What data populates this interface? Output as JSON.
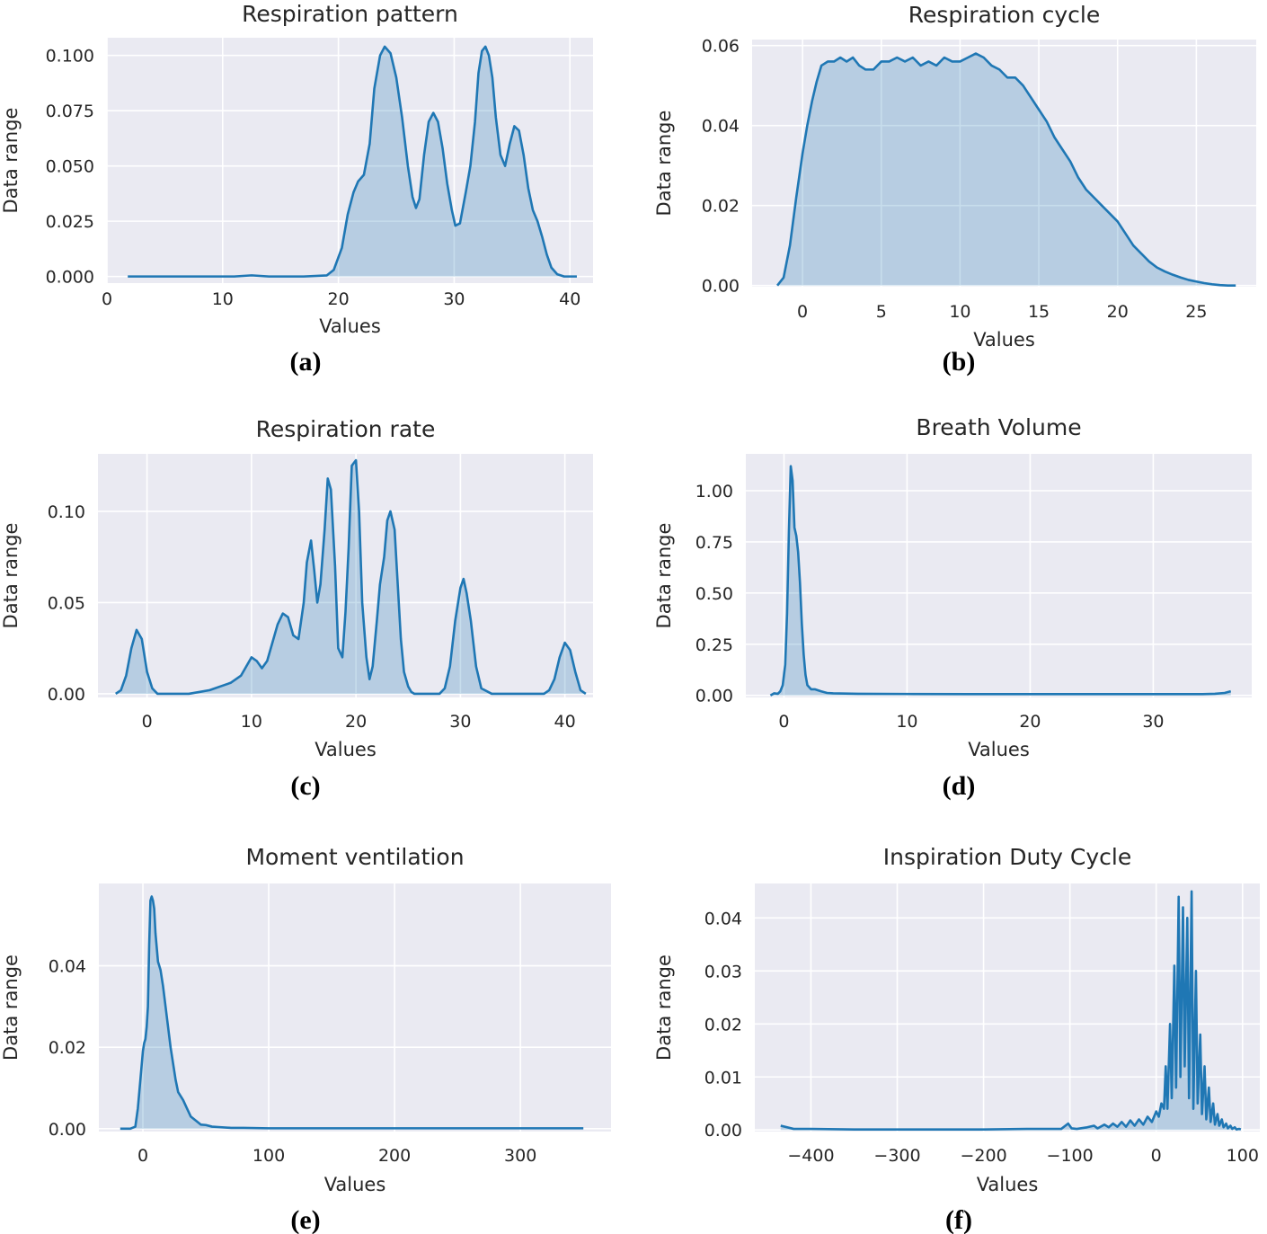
{
  "style": {
    "panel_bg": "#eaeaf2",
    "grid": "#ffffff",
    "line": "#1f77b4",
    "fill": "#1f77b4",
    "fill_opacity": 0.25
  },
  "chart_data": [
    {
      "type": "area",
      "caption": "(a)",
      "title": "Respiration pattern",
      "xlabel": "Values",
      "ylabel": "Data range",
      "xlim": [
        0,
        42
      ],
      "ylim": [
        -0.003,
        0.108
      ],
      "xticks": [
        0,
        10,
        20,
        30,
        40
      ],
      "yticks": [
        0.0,
        0.025,
        0.05,
        0.075,
        0.1
      ],
      "xticklabels": [
        "0",
        "10",
        "20",
        "30",
        "40"
      ],
      "yticklabels": [
        "0.000",
        "0.025",
        "0.050",
        "0.075",
        "0.100"
      ],
      "grid": true,
      "x": [
        1.8,
        5,
        9,
        11,
        12.5,
        14,
        17,
        19,
        19.6,
        20.3,
        20.8,
        21.3,
        21.7,
        22.2,
        22.7,
        23.1,
        23.6,
        24.0,
        24.5,
        25.0,
        25.5,
        26.0,
        26.4,
        26.7,
        27.0,
        27.4,
        27.8,
        28.2,
        28.6,
        29.0,
        29.4,
        29.8,
        30.1,
        30.5,
        31.0,
        31.4,
        31.8,
        32.1,
        32.4,
        32.7,
        33.0,
        33.3,
        33.6,
        34.0,
        34.4,
        34.8,
        35.2,
        35.6,
        36.0,
        36.4,
        36.8,
        37.2,
        37.6,
        38.0,
        38.4,
        38.9,
        39.5,
        40.0,
        40.6
      ],
      "y": [
        0.0,
        0.0,
        0.0,
        0.0,
        0.0005,
        0.0,
        0.0,
        0.0005,
        0.003,
        0.013,
        0.028,
        0.038,
        0.043,
        0.046,
        0.06,
        0.085,
        0.1,
        0.104,
        0.101,
        0.09,
        0.072,
        0.05,
        0.036,
        0.031,
        0.035,
        0.055,
        0.07,
        0.074,
        0.07,
        0.058,
        0.042,
        0.03,
        0.023,
        0.024,
        0.038,
        0.05,
        0.07,
        0.092,
        0.102,
        0.104,
        0.1,
        0.09,
        0.072,
        0.055,
        0.05,
        0.06,
        0.068,
        0.066,
        0.055,
        0.04,
        0.03,
        0.025,
        0.018,
        0.01,
        0.004,
        0.001,
        0.0,
        0.0,
        0.0
      ]
    },
    {
      "type": "area",
      "caption": "(b)",
      "title": "Respiration cycle",
      "xlabel": "Values",
      "ylabel": "Data range",
      "xlim": [
        -3.2,
        28.8
      ],
      "ylim": [
        -0.0003,
        0.0615
      ],
      "xticks": [
        0,
        5,
        10,
        15,
        20,
        25
      ],
      "yticks": [
        0.0,
        0.02,
        0.04,
        0.06
      ],
      "xticklabels": [
        "0",
        "5",
        "10",
        "15",
        "20",
        "25"
      ],
      "yticklabels": [
        "0.00",
        "0.02",
        "0.04",
        "0.06"
      ],
      "grid": true,
      "x": [
        -1.6,
        -1.2,
        -0.8,
        -0.4,
        0.0,
        0.3,
        0.6,
        0.9,
        1.2,
        1.6,
        2.0,
        2.4,
        2.8,
        3.2,
        3.6,
        4.0,
        4.5,
        5.0,
        5.5,
        6.0,
        6.5,
        7.0,
        7.5,
        8.0,
        8.5,
        9.0,
        9.5,
        10.0,
        10.5,
        11.0,
        11.5,
        12.0,
        12.5,
        13.0,
        13.5,
        14.0,
        14.5,
        15.0,
        15.5,
        16.0,
        16.5,
        17.0,
        17.5,
        18.0,
        18.5,
        19.0,
        19.5,
        20.0,
        20.5,
        21.0,
        21.5,
        22.0,
        22.5,
        23.0,
        23.5,
        24.0,
        24.5,
        25.0,
        25.5,
        26.0,
        26.5,
        27.0,
        27.5
      ],
      "y": [
        0.0,
        0.002,
        0.01,
        0.022,
        0.033,
        0.04,
        0.046,
        0.051,
        0.055,
        0.056,
        0.056,
        0.057,
        0.056,
        0.057,
        0.055,
        0.054,
        0.054,
        0.056,
        0.056,
        0.057,
        0.056,
        0.057,
        0.055,
        0.056,
        0.055,
        0.057,
        0.056,
        0.056,
        0.057,
        0.058,
        0.057,
        0.055,
        0.054,
        0.052,
        0.052,
        0.05,
        0.047,
        0.044,
        0.041,
        0.037,
        0.034,
        0.031,
        0.027,
        0.024,
        0.022,
        0.02,
        0.018,
        0.016,
        0.013,
        0.01,
        0.008,
        0.006,
        0.0045,
        0.0035,
        0.0027,
        0.002,
        0.0014,
        0.001,
        0.0006,
        0.0003,
        0.0001,
        0.0,
        0.0
      ]
    },
    {
      "type": "area",
      "caption": "(c)",
      "title": "Respiration rate",
      "xlabel": "Values",
      "ylabel": "Data range",
      "xlim": [
        -4.7,
        42.7
      ],
      "ylim": [
        -0.002,
        0.1315
      ],
      "xticks": [
        0,
        10,
        20,
        30,
        40
      ],
      "yticks": [
        0.0,
        0.05,
        0.1
      ],
      "xticklabels": [
        "0",
        "10",
        "20",
        "30",
        "40"
      ],
      "yticklabels": [
        "0.00",
        "0.05",
        "0.10"
      ],
      "grid": true,
      "x": [
        -3.0,
        -2.5,
        -2.0,
        -1.5,
        -1.0,
        -0.5,
        0.0,
        0.5,
        1.0,
        2.0,
        3.0,
        4.0,
        5.0,
        6.0,
        7.0,
        8.0,
        9.0,
        9.5,
        10.0,
        10.5,
        11.0,
        11.5,
        12.0,
        12.5,
        13.0,
        13.5,
        14.0,
        14.5,
        15.0,
        15.3,
        15.7,
        16.0,
        16.3,
        16.6,
        17.0,
        17.3,
        17.6,
        18.0,
        18.3,
        18.7,
        19.0,
        19.3,
        19.6,
        20.0,
        20.3,
        20.6,
        21.0,
        21.3,
        21.6,
        22.0,
        22.3,
        22.7,
        23.0,
        23.3,
        23.7,
        24.0,
        24.3,
        24.6,
        25.0,
        25.3,
        25.6,
        26.0,
        27.0,
        28.0,
        28.5,
        29.0,
        29.5,
        30.0,
        30.3,
        30.6,
        31.0,
        31.5,
        32.0,
        33.0,
        35.0,
        37.0,
        38.0,
        38.5,
        39.0,
        39.5,
        40.0,
        40.5,
        41.0,
        41.5,
        42.0
      ],
      "y": [
        0.0,
        0.002,
        0.01,
        0.025,
        0.035,
        0.03,
        0.012,
        0.003,
        0.0,
        0.0,
        0.0,
        0.0,
        0.001,
        0.002,
        0.004,
        0.006,
        0.01,
        0.015,
        0.02,
        0.018,
        0.014,
        0.018,
        0.028,
        0.038,
        0.044,
        0.042,
        0.032,
        0.03,
        0.05,
        0.072,
        0.084,
        0.068,
        0.05,
        0.06,
        0.09,
        0.118,
        0.112,
        0.07,
        0.025,
        0.02,
        0.045,
        0.08,
        0.125,
        0.128,
        0.1,
        0.05,
        0.02,
        0.008,
        0.015,
        0.04,
        0.06,
        0.075,
        0.095,
        0.1,
        0.09,
        0.06,
        0.03,
        0.012,
        0.004,
        0.001,
        0.0,
        0.0,
        0.0,
        0.0,
        0.003,
        0.015,
        0.04,
        0.058,
        0.063,
        0.055,
        0.04,
        0.015,
        0.003,
        0.0,
        0.0,
        0.0,
        0.0,
        0.002,
        0.008,
        0.02,
        0.028,
        0.024,
        0.012,
        0.002,
        0.0
      ]
    },
    {
      "type": "area",
      "caption": "(d)",
      "title": "Breath Volume",
      "xlabel": "Values",
      "ylabel": "Data range",
      "xlim": [
        -3.1,
        38.0
      ],
      "ylim": [
        -0.01,
        1.18
      ],
      "xticks": [
        0,
        10,
        20,
        30
      ],
      "yticks": [
        0.0,
        0.25,
        0.5,
        0.75,
        1.0
      ],
      "xticklabels": [
        "0",
        "10",
        "20",
        "30"
      ],
      "yticklabels": [
        "0.00",
        "0.25",
        "0.50",
        "0.75",
        "1.00"
      ],
      "grid": true,
      "x": [
        -1.1,
        -0.8,
        -0.5,
        -0.3,
        -0.1,
        0.1,
        0.25,
        0.4,
        0.55,
        0.7,
        0.85,
        1.0,
        1.15,
        1.3,
        1.45,
        1.6,
        1.75,
        1.9,
        2.05,
        2.2,
        2.5,
        3.0,
        3.5,
        4.0,
        6.0,
        10.0,
        15.0,
        20.0,
        25.0,
        30.0,
        34.0,
        35.0,
        35.8,
        36.3
      ],
      "y": [
        0.0,
        0.01,
        0.008,
        0.02,
        0.05,
        0.15,
        0.4,
        0.8,
        1.12,
        1.05,
        0.82,
        0.78,
        0.7,
        0.55,
        0.35,
        0.2,
        0.1,
        0.05,
        0.04,
        0.03,
        0.03,
        0.02,
        0.012,
        0.01,
        0.008,
        0.007,
        0.006,
        0.006,
        0.006,
        0.006,
        0.006,
        0.008,
        0.012,
        0.02
      ]
    },
    {
      "type": "area",
      "caption": "(e)",
      "title": "Moment ventilation",
      "xlabel": "Values",
      "ylabel": "Data range",
      "xlim": [
        -35,
        372
      ],
      "ylim": [
        -0.0007,
        0.0602
      ],
      "xticks": [
        0,
        100,
        200,
        300
      ],
      "yticks": [
        0.0,
        0.02,
        0.04
      ],
      "xticklabels": [
        "0",
        "100",
        "200",
        "300"
      ],
      "yticklabels": [
        "0.00",
        "0.02",
        "0.04"
      ],
      "grid": true,
      "x": [
        -18,
        -10,
        -6,
        -4,
        -2,
        0,
        1,
        2,
        3,
        4,
        5,
        6,
        7,
        8,
        9,
        10,
        12,
        14,
        16,
        18,
        20,
        22,
        24,
        26,
        28,
        30,
        32,
        35,
        38,
        42,
        46,
        50,
        55,
        60,
        70,
        80,
        100,
        150,
        200,
        250,
        300,
        350
      ],
      "y": [
        0.0,
        0.0,
        0.0005,
        0.005,
        0.012,
        0.019,
        0.021,
        0.022,
        0.025,
        0.03,
        0.045,
        0.056,
        0.057,
        0.056,
        0.054,
        0.048,
        0.041,
        0.039,
        0.035,
        0.03,
        0.025,
        0.02,
        0.016,
        0.012,
        0.009,
        0.008,
        0.007,
        0.005,
        0.003,
        0.002,
        0.001,
        0.0009,
        0.0005,
        0.0004,
        0.0002,
        0.0002,
        0.0001,
        0.0001,
        0.0001,
        0.0001,
        0.0001,
        0.0001
      ]
    },
    {
      "type": "area",
      "caption": "(f)",
      "title": "Inspiration Duty Cycle",
      "xlabel": "Values",
      "ylabel": "Data range",
      "xlim": [
        -465,
        120
      ],
      "ylim": [
        -0.0003,
        0.0465
      ],
      "xticks": [
        -400,
        -300,
        -200,
        -100,
        0,
        100
      ],
      "yticks": [
        0.0,
        0.01,
        0.02,
        0.03,
        0.04
      ],
      "xticklabels": [
        "−400",
        "−300",
        "−200",
        "−100",
        "0",
        "100"
      ],
      "yticklabels": [
        "0.00",
        "0.01",
        "0.02",
        "0.03",
        "0.04"
      ],
      "grid": true,
      "x": [
        -435,
        -420,
        -400,
        -350,
        -300,
        -250,
        -200,
        -150,
        -110,
        -102,
        -98,
        -92,
        -80,
        -72,
        -68,
        -60,
        -55,
        -50,
        -45,
        -40,
        -35,
        -30,
        -25,
        -20,
        -15,
        -10,
        -5,
        0,
        3,
        6,
        9,
        11,
        13,
        16,
        18,
        21,
        23,
        26,
        28,
        31,
        33,
        36,
        38,
        41,
        43,
        46,
        48,
        51,
        53,
        56,
        58,
        61,
        63,
        66,
        68,
        71,
        73,
        76,
        78,
        81,
        83,
        86,
        88,
        91,
        93,
        96,
        98
      ],
      "y": [
        0.0008,
        0.0002,
        0.0002,
        0.0001,
        0.0001,
        0.0001,
        0.0001,
        0.0002,
        0.0002,
        0.0012,
        0.0003,
        0.0002,
        0.0005,
        0.0008,
        0.0003,
        0.001,
        0.0005,
        0.0012,
        0.0006,
        0.0015,
        0.0006,
        0.0018,
        0.0008,
        0.002,
        0.001,
        0.0025,
        0.0015,
        0.0035,
        0.0025,
        0.005,
        0.004,
        0.012,
        0.004,
        0.02,
        0.006,
        0.031,
        0.008,
        0.044,
        0.01,
        0.042,
        0.012,
        0.04,
        0.006,
        0.045,
        0.004,
        0.03,
        0.005,
        0.018,
        0.003,
        0.012,
        0.002,
        0.008,
        0.0015,
        0.005,
        0.001,
        0.003,
        0.0008,
        0.002,
        0.0005,
        0.0012,
        0.0003,
        0.0008,
        0.0002,
        0.0005,
        0.0001,
        0.0002,
        0.0001
      ]
    }
  ]
}
